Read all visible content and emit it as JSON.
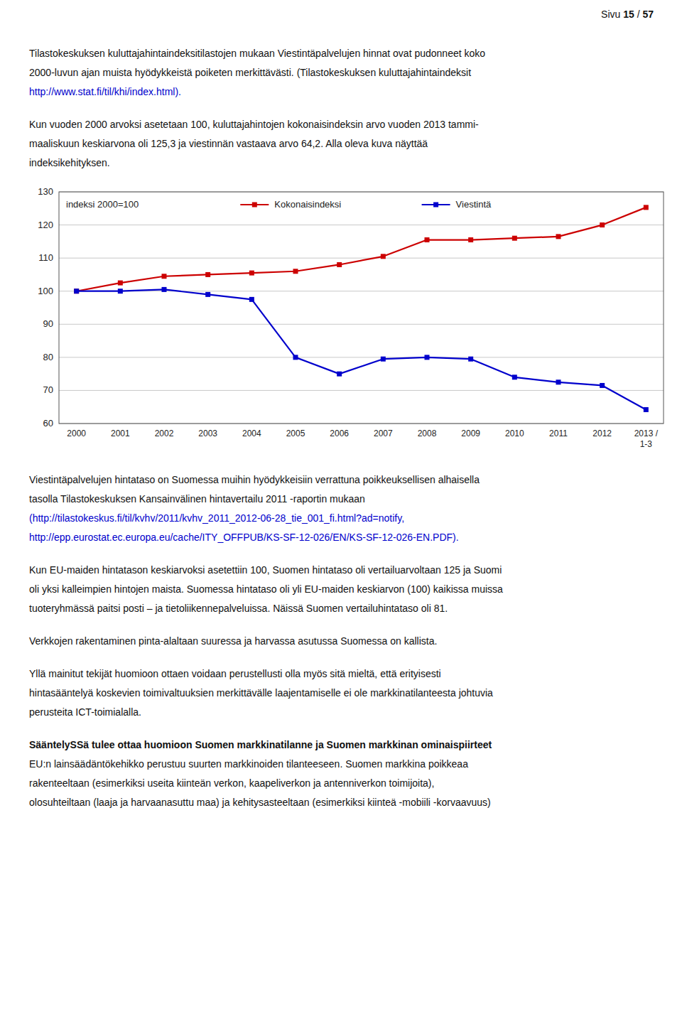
{
  "chart_data": {
    "type": "line",
    "ylabel": "indeksi 2000=100",
    "categories": [
      "2000",
      "2001",
      "2002",
      "2003",
      "2004",
      "2005",
      "2006",
      "2007",
      "2008",
      "2009",
      "2010",
      "2011",
      "2012",
      "2013 /\n1-3"
    ],
    "series": [
      {
        "name": "Kokonaisindeksi",
        "color": "#cc0000",
        "marker": "square",
        "values": [
          100.0,
          102.5,
          104.5,
          105.0,
          105.5,
          106.0,
          108.0,
          110.5,
          115.5,
          115.5,
          116.0,
          116.5,
          120.0,
          125.3
        ]
      },
      {
        "name": "Viestintä",
        "color": "#0000cc",
        "marker": "square",
        "values": [
          100.0,
          100.0,
          100.5,
          99.0,
          97.5,
          80.0,
          75.0,
          79.5,
          80.0,
          79.5,
          74.0,
          72.5,
          71.5,
          64.2
        ]
      }
    ],
    "ylim": [
      60,
      130
    ],
    "yticks": [
      60,
      70,
      80,
      90,
      100,
      110,
      120,
      130
    ],
    "grid": true,
    "legend": "top"
  },
  "page_text": "Sivu ",
  "page_num1": "15",
  "page_sep": " / ",
  "page_num2": "57",
  "para1_lines": [
    "Tilastokeskuksen kuluttajahintaindeksitilastojen mukaan Viestintäpalvelujen hinnat ovat pudonneet koko",
    "2000-luvun ajan muista hyödykkeistä poiketen merkittävästi. (Tilastokeskuksen kuluttajahintaindeksit"
  ],
  "para1_link": "http://www.stat.fi/til/khi/index.html).",
  "para2_lines": [
    "Kun vuoden 2000 arvoksi asetetaan 100, kuluttajahintojen kokonaisindeksin arvo vuoden 2013 tammi-",
    "maaliskuun keskiarvona oli 125,3 ja viestinnän vastaava arvo 64,2. Alla oleva kuva näyttää",
    "indeksikehityksen."
  ],
  "para3_lines": [
    "Viestintäpalvelujen hintataso on Suomessa muihin hyödykkeisiin verrattuna poikkeuksellisen alhaisella",
    "tasolla Tilastokeskuksen Kansainvälinen hintavertailu 2011 -raportin mukaan"
  ],
  "para3_link1": "(http://tilastokeskus.fi/til/kvhv/2011/kvhv_2011_2012-06-28_tie_001_fi.html?ad=notify,",
  "para3_link2": "http://epp.eurostat.ec.europa.eu/cache/ITY_OFFPUB/KS-SF-12-026/EN/KS-SF-12-026-EN.PDF).",
  "para4_lines": [
    "Kun EU-maiden hintatason keskiarvoksi asetettiin 100, Suomen hintataso oli vertailuarvoltaan 125 ja Suomi",
    "oli yksi kalleimpien hintojen maista. Suomessa hintataso oli yli EU-maiden keskiarvon (100) kaikissa muissa",
    "tuoteryhmässä paitsi posti – ja tietoliikennepalveluissa. Näissä Suomen vertailuhintataso oli 81."
  ],
  "para5": "Verkkojen rakentaminen pinta-alaltaan suuressa ja harvassa asutussa Suomessa on kallista.",
  "para6_lines": [
    "Yllä mainitut tekijät huomioon ottaen voidaan perustellusti olla myös sitä mieltä, että erityisesti",
    "hintasääntelyä koskevien toimivaltuuksien merkittävälle laajentamiselle ei ole markkinatilanteesta johtuvia",
    "perusteita ICT-toimialalla."
  ],
  "para7_heading": "SääntelySSä tulee ottaa huomioon Suomen markkinatilanne ja Suomen markkinan ominaispiirteet",
  "para7_lines": [
    "EU:n lainsäädäntökehikko perustuu suurten markkinoiden tilanteeseen. Suomen markkina poikkeaa",
    "rakenteeltaan (esimerkiksi useita kiinteän verkon, kaapeliverkon ja antenniverkon toimijoita),",
    "olosuhteiltaan (laaja ja harvaanasuttu maa) ja kehitysasteeltaan (esimerkiksi kiinteä -mobiili -korvaavuus)"
  ]
}
